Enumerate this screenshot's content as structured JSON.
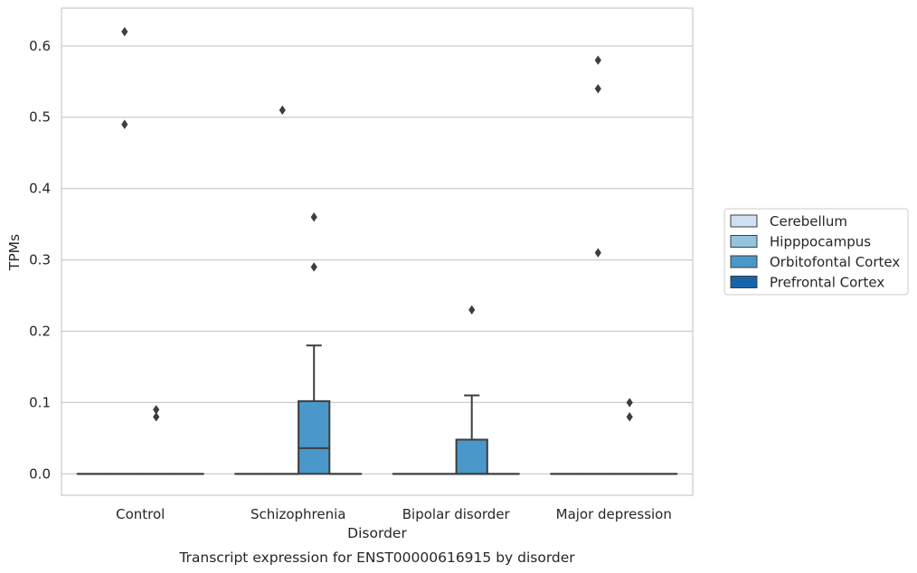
{
  "chart_data": {
    "type": "box",
    "caption": "Transcript expression for ENST00000616915 by disorder",
    "xlabel": "Disorder",
    "ylabel": "TPMs",
    "ylim": [
      -0.03,
      0.653
    ],
    "yticks": [
      0.0,
      0.1,
      0.2,
      0.3,
      0.4,
      0.5,
      0.6
    ],
    "ytick_labels": [
      "0.0",
      "0.1",
      "0.2",
      "0.3",
      "0.4",
      "0.5",
      "0.6"
    ],
    "grid": "horizontal",
    "legend_position": "right",
    "categories": [
      "Control",
      "Schizophrenia",
      "Bipolar disorder",
      "Major depression"
    ],
    "series": [
      {
        "name": "Cerebellum",
        "color": "#cfe1f2"
      },
      {
        "name": "Hipppocampus",
        "color": "#93c4de"
      },
      {
        "name": "Orbitofontal Cortex",
        "color": "#4a98c9"
      },
      {
        "name": "Prefrontal Cortex",
        "color": "#1764ab"
      }
    ],
    "boxes": [
      {
        "category": "Control",
        "series": "Cerebellum",
        "q1": 0,
        "median": 0,
        "q3": 0,
        "whisker_low": 0,
        "whisker_high": 0,
        "outliers": []
      },
      {
        "category": "Control",
        "series": "Hipppocampus",
        "q1": 0,
        "median": 0,
        "q3": 0,
        "whisker_low": 0,
        "whisker_high": 0,
        "outliers": [
          0.49,
          0.62
        ]
      },
      {
        "category": "Control",
        "series": "Orbitofontal Cortex",
        "q1": 0,
        "median": 0,
        "q3": 0,
        "whisker_low": 0,
        "whisker_high": 0,
        "outliers": []
      },
      {
        "category": "Control",
        "series": "Prefrontal Cortex",
        "q1": 0,
        "median": 0,
        "q3": 0,
        "whisker_low": 0,
        "whisker_high": 0,
        "outliers": []
      },
      {
        "category": "Schizophrenia",
        "series": "Cerebellum",
        "q1": 0,
        "median": 0,
        "q3": 0,
        "whisker_low": 0,
        "whisker_high": 0,
        "outliers": []
      },
      {
        "category": "Schizophrenia",
        "series": "Hipppocampus",
        "q1": 0,
        "median": 0,
        "q3": 0,
        "whisker_low": 0,
        "whisker_high": 0,
        "outliers": [
          0.51
        ]
      },
      {
        "category": "Schizophrenia",
        "series": "Orbitofontal Cortex",
        "q1": 0,
        "median": 0.036,
        "q3": 0.102,
        "whisker_low": 0,
        "whisker_high": 0.18,
        "outliers": [
          0.29,
          0.36
        ]
      },
      {
        "category": "Schizophrenia",
        "series": "Prefrontal Cortex",
        "q1": 0,
        "median": 0,
        "q3": 0,
        "whisker_low": 0,
        "whisker_high": 0,
        "outliers": []
      },
      {
        "category": "Bipolar disorder",
        "series": "Cerebellum",
        "q1": 0,
        "median": 0,
        "q3": 0,
        "whisker_low": 0,
        "whisker_high": 0,
        "outliers": []
      },
      {
        "category": "Bipolar disorder",
        "series": "Hipppocampus",
        "q1": 0,
        "median": 0,
        "q3": 0,
        "whisker_low": 0,
        "whisker_high": 0,
        "outliers": []
      },
      {
        "category": "Bipolar disorder",
        "series": "Orbitofontal Cortex",
        "q1": 0,
        "median": 0,
        "q3": 0.048,
        "whisker_low": 0,
        "whisker_high": 0.11,
        "outliers": [
          0.23
        ]
      },
      {
        "category": "Bipolar disorder",
        "series": "Prefrontal Cortex",
        "q1": 0,
        "median": 0,
        "q3": 0,
        "whisker_low": 0,
        "whisker_high": 0,
        "outliers": []
      },
      {
        "category": "Major depression",
        "series": "Cerebellum",
        "q1": 0,
        "median": 0,
        "q3": 0,
        "whisker_low": 0,
        "whisker_high": 0,
        "outliers": []
      },
      {
        "category": "Major depression",
        "series": "Hipppocampus",
        "q1": 0,
        "median": 0,
        "q3": 0,
        "whisker_low": 0,
        "whisker_high": 0,
        "outliers": [
          0.31,
          0.54,
          0.58
        ]
      },
      {
        "category": "Major depression",
        "series": "Orbitofontal Cortex",
        "q1": 0,
        "median": 0,
        "q3": 0,
        "whisker_low": 0,
        "whisker_high": 0,
        "outliers": [
          0.08,
          0.1
        ]
      },
      {
        "category": "Major depression",
        "series": "Prefrontal Cortex",
        "q1": 0,
        "median": 0,
        "q3": 0,
        "whisker_low": 0,
        "whisker_high": 0,
        "outliers": []
      }
    ],
    "extra_outliers": [
      {
        "category": "Control",
        "series": "Orbitofontal Cortex",
        "values": [
          0.08,
          0.09
        ]
      }
    ]
  }
}
